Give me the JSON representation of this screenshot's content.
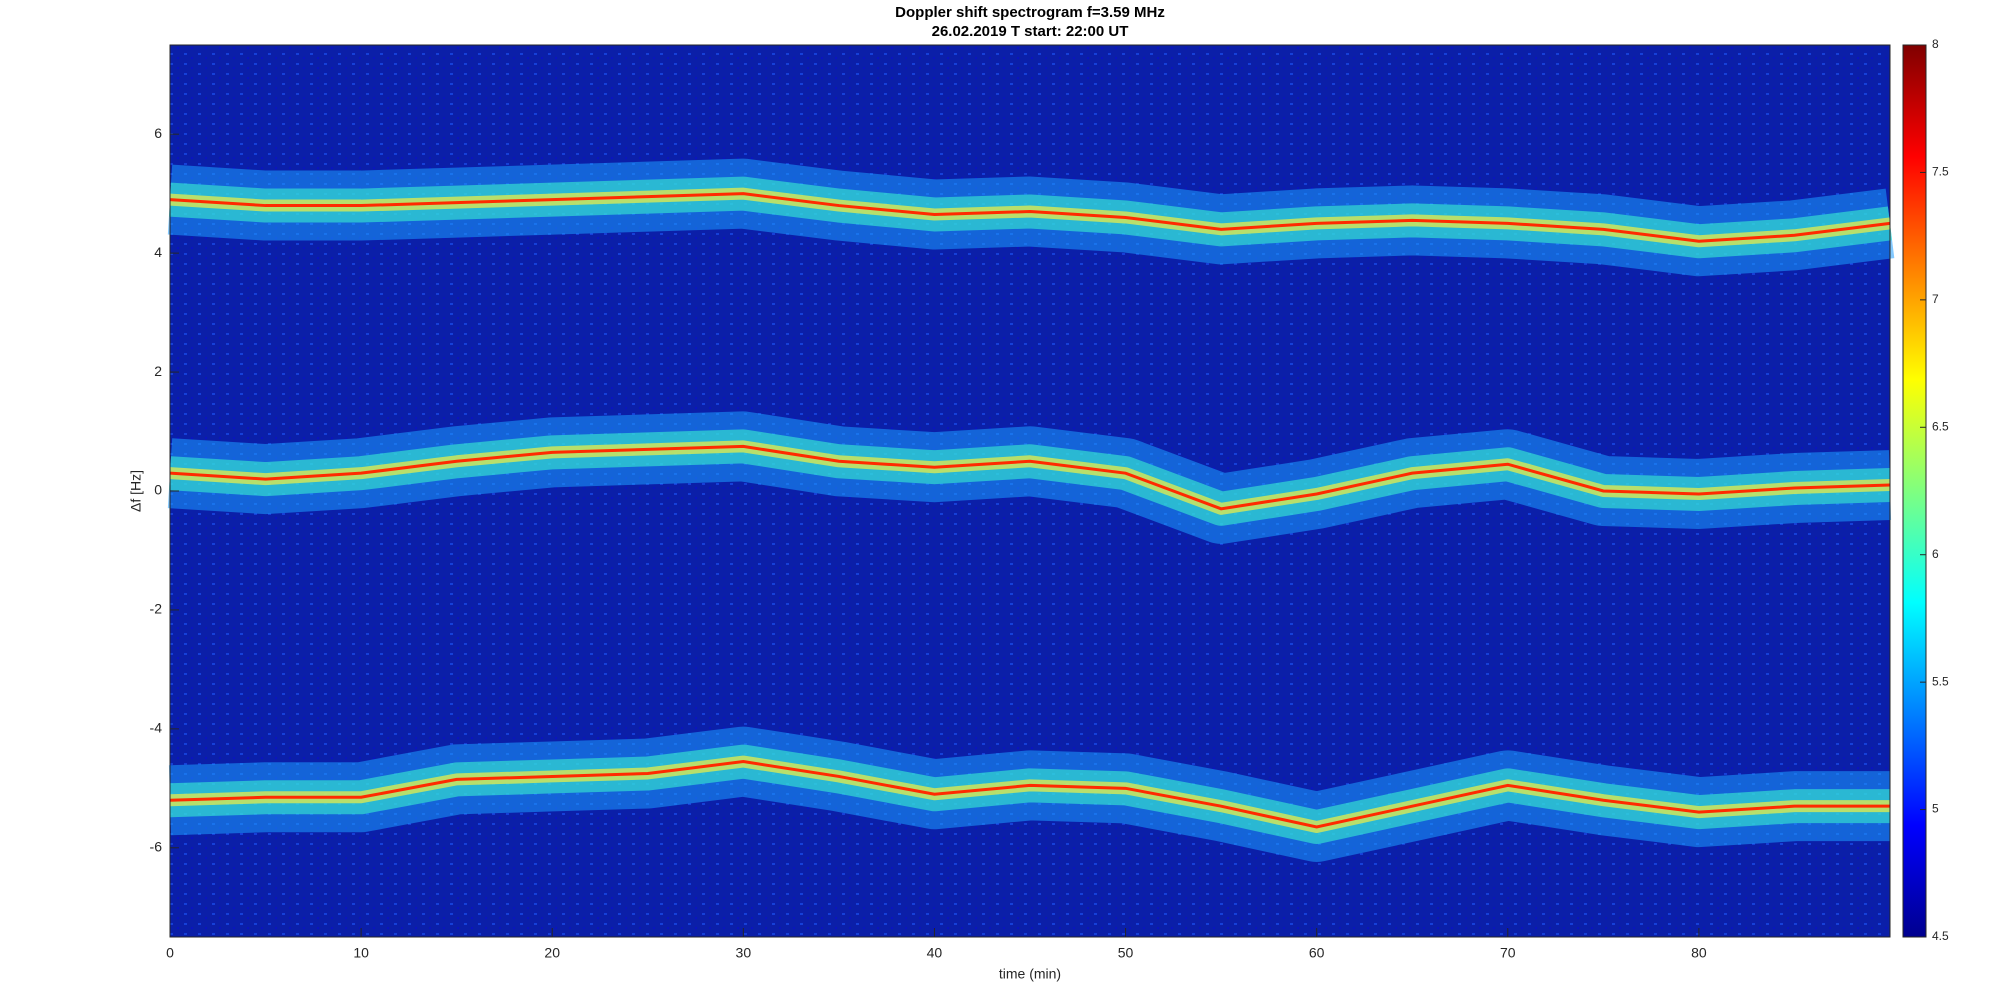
{
  "chart_data": {
    "type": "spectrogram",
    "title": "Doppler shift spectrogram f=3.59 MHz",
    "subtitle": "26.02.2019   T start: 22:00 UT",
    "x_label": "time (min)",
    "y_label": "Δf [Hz]",
    "x": [
      0,
      5,
      10,
      15,
      20,
      25,
      30,
      35,
      40,
      45,
      50,
      55,
      60,
      65,
      70,
      75,
      80,
      85,
      90
    ],
    "series": [
      {
        "color": "#ff2a00",
        "values": [
          4.9,
          4.8,
          4.8,
          4.85,
          4.9,
          4.95,
          5.0,
          4.8,
          4.65,
          4.7,
          4.6,
          4.4,
          4.5,
          4.55,
          4.5,
          4.4,
          4.2,
          4.3,
          4.5
        ]
      },
      {
        "color": "#ff2a00",
        "values": [
          0.3,
          0.2,
          0.3,
          0.5,
          0.65,
          0.7,
          0.75,
          0.5,
          0.4,
          0.5,
          0.3,
          -0.3,
          -0.05,
          0.3,
          0.45,
          0.0,
          -0.05,
          0.05,
          0.1
        ]
      },
      {
        "color": "#ff2a00",
        "values": [
          -5.2,
          -5.15,
          -5.15,
          -4.85,
          -4.8,
          -4.75,
          -4.55,
          -4.8,
          -5.1,
          -4.95,
          -5.0,
          -5.3,
          -5.65,
          -5.3,
          -4.95,
          -5.2,
          -5.4,
          -5.3,
          -5.3
        ]
      }
    ],
    "xlim": [
      0,
      90
    ],
    "xticks": [
      0,
      10,
      20,
      30,
      40,
      50,
      60,
      70,
      80
    ],
    "ylim": [
      -7.5,
      7.5
    ],
    "yticks": [
      -6,
      -4,
      -2,
      0,
      2,
      4,
      6
    ],
    "colorbar": {
      "clim": [
        4.5,
        8
      ],
      "ticks": [
        4.5,
        5,
        5.5,
        6,
        6.5,
        7,
        7.5,
        8
      ]
    }
  }
}
